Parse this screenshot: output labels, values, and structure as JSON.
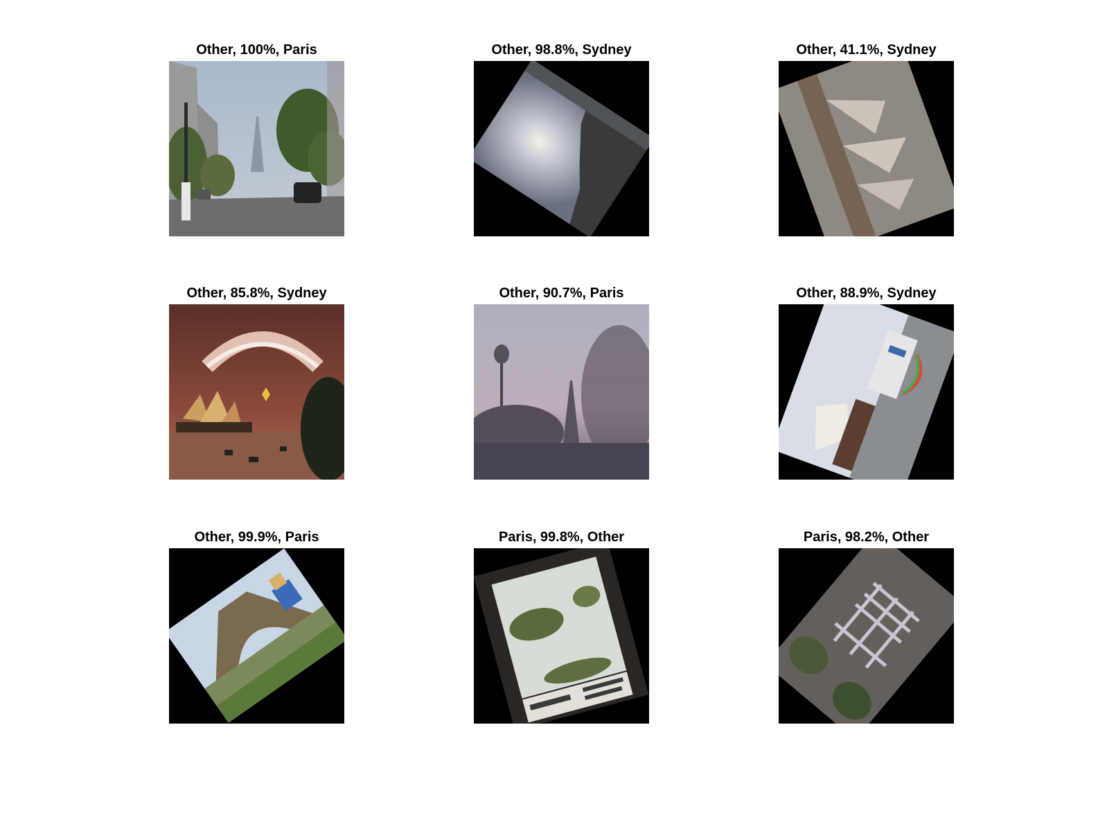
{
  "figure": {
    "panels": [
      {
        "title": "Other, 100%, Paris",
        "scene": "paris-street-eiffel"
      },
      {
        "title": "Other, 98.8%, Sydney",
        "scene": "rotated-sunset-silhouette"
      },
      {
        "title": "Other, 41.1%, Sydney",
        "scene": "rotated-noisy-opera-house"
      },
      {
        "title": "Other, 85.8%, Sydney",
        "scene": "sydney-fireworks"
      },
      {
        "title": "Other, 90.7%, Paris",
        "scene": "noisy-eiffel-dusk"
      },
      {
        "title": "Other, 88.9%, Sydney",
        "scene": "rotated-opera-house-ferry"
      },
      {
        "title": "Other, 99.9%, Paris",
        "scene": "rotated-eiffel-under-view"
      },
      {
        "title": "Paris, 99.8%, Other",
        "scene": "rotated-snowy-mountain-slide"
      },
      {
        "title": "Paris, 98.2%, Other",
        "scene": "rotated-noisy-garden-chair"
      }
    ]
  }
}
